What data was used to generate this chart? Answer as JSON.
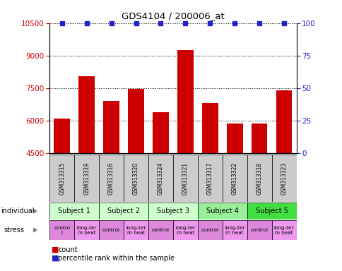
{
  "title": "GDS4104 / 200006_at",
  "samples": [
    "GSM313315",
    "GSM313319",
    "GSM313316",
    "GSM313320",
    "GSM313324",
    "GSM313321",
    "GSM313317",
    "GSM313322",
    "GSM313318",
    "GSM313323"
  ],
  "counts": [
    6100,
    8050,
    6900,
    7450,
    6400,
    9250,
    6800,
    5850,
    5850,
    7400
  ],
  "ylim_left": [
    4500,
    10500
  ],
  "ylim_right": [
    0,
    100
  ],
  "yticks_left": [
    4500,
    6000,
    7500,
    9000,
    10500
  ],
  "yticks_right": [
    0,
    25,
    50,
    75,
    100
  ],
  "bar_color": "#cc0000",
  "dot_color": "#2222cc",
  "subjects": [
    {
      "label": "Subject 1",
      "start": 0,
      "end": 2,
      "color": "#ccffcc"
    },
    {
      "label": "Subject 2",
      "start": 2,
      "end": 4,
      "color": "#ccffcc"
    },
    {
      "label": "Subject 3",
      "start": 4,
      "end": 6,
      "color": "#ccffcc"
    },
    {
      "label": "Subject 4",
      "start": 6,
      "end": 8,
      "color": "#99ee99"
    },
    {
      "label": "Subject 5",
      "start": 8,
      "end": 10,
      "color": "#44dd44"
    }
  ],
  "stress": [
    {
      "label": "contro\nl",
      "start": 0,
      "end": 1,
      "color": "#dd88dd"
    },
    {
      "label": "long-ter\nm heat",
      "start": 1,
      "end": 2,
      "color": "#ee99ee"
    },
    {
      "label": "control",
      "start": 2,
      "end": 3,
      "color": "#dd88dd"
    },
    {
      "label": "long-ter\nm heat",
      "start": 3,
      "end": 4,
      "color": "#ee99ee"
    },
    {
      "label": "control",
      "start": 4,
      "end": 5,
      "color": "#dd88dd"
    },
    {
      "label": "long-ter\nm heat",
      "start": 5,
      "end": 6,
      "color": "#ee99ee"
    },
    {
      "label": "control",
      "start": 6,
      "end": 7,
      "color": "#dd88dd"
    },
    {
      "label": "long-ter\nm heat",
      "start": 7,
      "end": 8,
      "color": "#ee99ee"
    },
    {
      "label": "control",
      "start": 8,
      "end": 9,
      "color": "#dd88dd"
    },
    {
      "label": "long-ter\nm heat",
      "start": 9,
      "end": 10,
      "color": "#ee99ee"
    }
  ],
  "left_label_color": "#cc0000",
  "right_label_color": "#2222cc",
  "gsm_row_color": "#cccccc"
}
